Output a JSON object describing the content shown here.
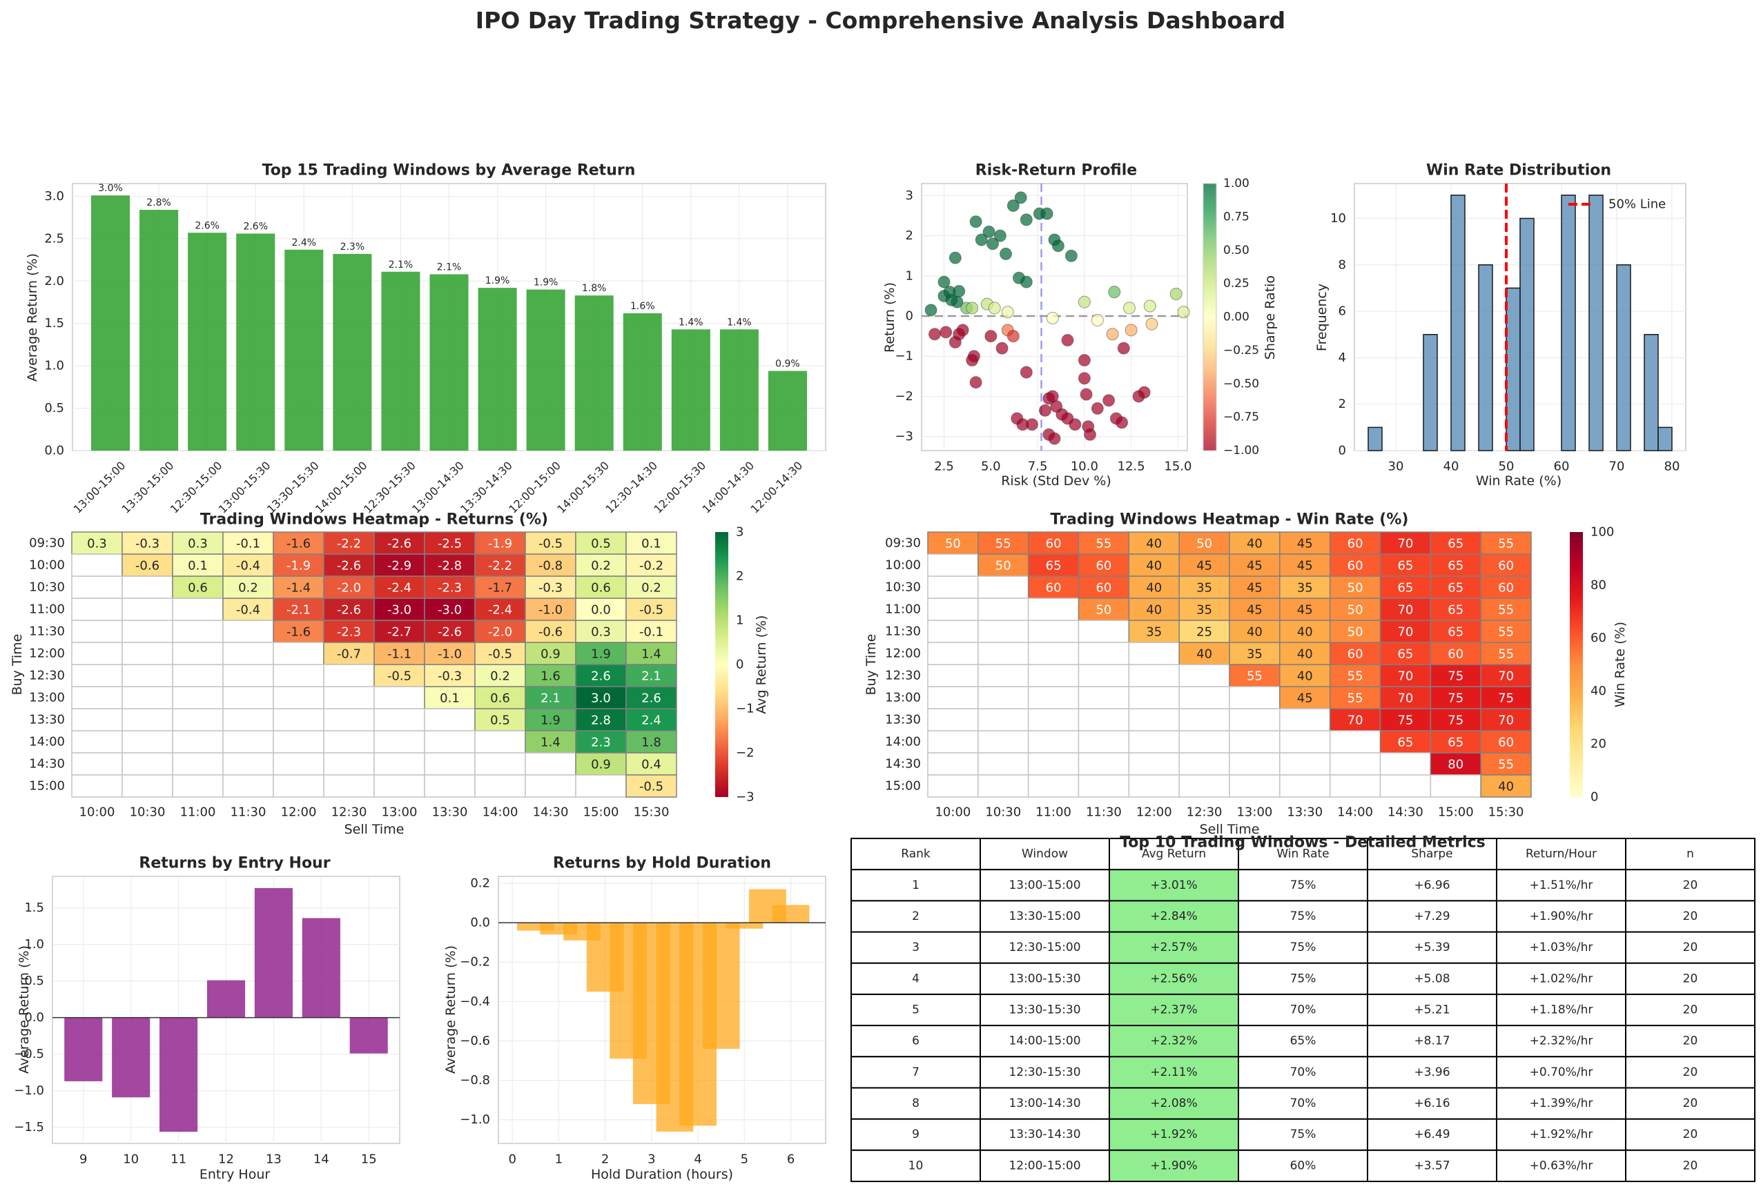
{
  "page": {
    "title": "IPO Day Trading Strategy - Comprehensive Analysis Dashboard"
  },
  "chart_data": [
    {
      "id": "top15",
      "type": "bar",
      "title": "Top 15 Trading Windows by Average Return",
      "xlabel": "",
      "ylabel": "Average Return (%)",
      "ylim": [
        0,
        3.15
      ],
      "yticks": [
        0.0,
        0.5,
        1.0,
        1.5,
        2.0,
        2.5,
        3.0
      ],
      "categories": [
        "13:00-15:00",
        "13:30-15:00",
        "12:30-15:00",
        "13:00-15:30",
        "13:30-15:30",
        "14:00-15:00",
        "12:30-15:30",
        "13:00-14:30",
        "13:30-14:30",
        "12:00-15:00",
        "14:00-15:30",
        "12:30-14:30",
        "12:00-15:30",
        "14:00-14:30",
        "12:00-14:30"
      ],
      "values": [
        3.01,
        2.84,
        2.57,
        2.56,
        2.37,
        2.32,
        2.11,
        2.08,
        1.92,
        1.9,
        1.83,
        1.62,
        1.43,
        1.43,
        0.94
      ],
      "data_labels": [
        "3.0%",
        "2.8%",
        "2.6%",
        "2.6%",
        "2.4%",
        "2.3%",
        "2.1%",
        "2.1%",
        "1.9%",
        "1.9%",
        "1.8%",
        "1.6%",
        "1.4%",
        "1.4%",
        "0.9%"
      ],
      "color": "#2ca02c"
    },
    {
      "id": "riskreturn",
      "type": "scatter",
      "title": "Risk-Return Profile",
      "xlabel": "Risk (Std Dev %)",
      "ylabel": "Return (%)",
      "xlim": [
        1.3,
        15.5
      ],
      "ylim": [
        -3.35,
        3.3
      ],
      "xticks": [
        2.5,
        5.0,
        7.5,
        10.0,
        12.5,
        15.0
      ],
      "yticks": [
        -3,
        -2,
        -1,
        0,
        1,
        2,
        3
      ],
      "vline": 7.7,
      "hline": 0,
      "colorbar": {
        "label": "Sharpe Ratio",
        "range": [
          -1,
          1
        ],
        "ticks": [
          "1.00",
          "0.75",
          "0.50",
          "0.25",
          "0.00",
          "-0.25",
          "-0.50",
          "-0.75",
          "-1.00"
        ]
      },
      "points": [
        [
          1.8,
          0.15,
          1
        ],
        [
          2.5,
          0.5,
          1
        ],
        [
          2.5,
          0.85,
          1
        ],
        [
          2.9,
          0.4,
          1
        ],
        [
          2.8,
          0.6,
          1
        ],
        [
          3.1,
          1.45,
          1
        ],
        [
          3.3,
          0.62,
          1
        ],
        [
          3.2,
          0.35,
          1
        ],
        [
          3.7,
          0.2,
          0.6
        ],
        [
          4.2,
          2.35,
          1
        ],
        [
          4.5,
          1.9,
          1
        ],
        [
          4.9,
          2.1,
          1
        ],
        [
          5.1,
          1.8,
          1
        ],
        [
          5.5,
          2.0,
          1
        ],
        [
          5.8,
          1.55,
          1
        ],
        [
          6.2,
          2.75,
          1
        ],
        [
          6.6,
          2.95,
          1
        ],
        [
          6.9,
          2.4,
          1
        ],
        [
          7.6,
          2.55,
          1
        ],
        [
          8.0,
          2.55,
          1
        ],
        [
          8.4,
          1.9,
          1
        ],
        [
          8.6,
          1.75,
          1
        ],
        [
          9.3,
          1.5,
          1
        ],
        [
          6.5,
          0.95,
          1
        ],
        [
          4.0,
          0.2,
          0.4
        ],
        [
          4.8,
          0.3,
          0.3
        ],
        [
          5.2,
          0.2,
          0.2
        ],
        [
          5.9,
          0.1,
          0.1
        ],
        [
          6.9,
          0.85,
          1
        ],
        [
          10.0,
          0.35,
          0.3
        ],
        [
          11.6,
          0.6,
          0.6
        ],
        [
          12.4,
          0.2,
          0.2
        ],
        [
          13.5,
          0.25,
          0.2
        ],
        [
          14.9,
          0.55,
          0.4
        ],
        [
          15.3,
          0.1,
          0.2
        ],
        [
          8.3,
          -0.05,
          0
        ],
        [
          10.7,
          -0.1,
          0
        ],
        [
          11.5,
          -0.45,
          -0.4
        ],
        [
          12.5,
          -0.35,
          -0.4
        ],
        [
          13.6,
          -0.2,
          -0.3
        ],
        [
          2.0,
          -0.45,
          -1
        ],
        [
          2.6,
          -0.4,
          -1
        ],
        [
          3.1,
          -0.65,
          -1
        ],
        [
          3.5,
          -0.35,
          -1
        ],
        [
          3.3,
          -0.45,
          -1
        ],
        [
          4.1,
          -1.0,
          -1
        ],
        [
          4.0,
          -1.1,
          -1
        ],
        [
          4.2,
          -1.65,
          -1
        ],
        [
          5.0,
          -0.5,
          -1
        ],
        [
          5.6,
          -0.8,
          -1
        ],
        [
          5.9,
          -0.35,
          -0.6
        ],
        [
          6.2,
          -0.5,
          -0.8
        ],
        [
          6.9,
          -1.4,
          -1
        ],
        [
          6.4,
          -2.55,
          -1
        ],
        [
          6.7,
          -2.7,
          -1
        ],
        [
          7.2,
          -2.7,
          -1
        ],
        [
          7.9,
          -2.35,
          -1
        ],
        [
          8.1,
          -2.05,
          -1
        ],
        [
          8.3,
          -2.0,
          -1
        ],
        [
          8.5,
          -2.25,
          -1
        ],
        [
          8.8,
          -2.45,
          -1
        ],
        [
          9.1,
          -2.55,
          -1
        ],
        [
          9.5,
          -2.7,
          -1
        ],
        [
          8.1,
          -2.95,
          -1
        ],
        [
          8.4,
          -3.05,
          -1
        ],
        [
          9.1,
          -0.6,
          -1
        ],
        [
          10.0,
          -1.1,
          -1
        ],
        [
          10.0,
          -1.55,
          -1
        ],
        [
          10.1,
          -1.95,
          -1
        ],
        [
          10.2,
          -2.75,
          -1
        ],
        [
          10.3,
          -2.95,
          -1
        ],
        [
          10.7,
          -2.3,
          -1
        ],
        [
          11.3,
          -2.1,
          -1
        ],
        [
          11.7,
          -2.55,
          -1
        ],
        [
          12.0,
          -2.65,
          -1
        ],
        [
          12.9,
          -2.0,
          -1
        ],
        [
          13.2,
          -1.9,
          -1
        ],
        [
          12.1,
          -0.8,
          -1
        ]
      ]
    },
    {
      "id": "winrate",
      "type": "bar",
      "title": "Win Rate Distribution",
      "xlabel": "Win Rate (%)",
      "ylabel": "Frequency",
      "xlim": [
        22.5,
        82.5
      ],
      "ylim": [
        0,
        11.5
      ],
      "xticks": [
        30,
        40,
        50,
        60,
        70,
        80
      ],
      "yticks": [
        0,
        2,
        4,
        6,
        8,
        10
      ],
      "bins": [
        [
          25,
          27.5,
          1
        ],
        [
          35,
          37.5,
          5
        ],
        [
          40,
          42.5,
          11
        ],
        [
          45,
          47.5,
          8
        ],
        [
          50,
          52.5,
          7
        ],
        [
          52.5,
          55,
          10
        ],
        [
          60,
          62.5,
          11
        ],
        [
          65,
          67.5,
          11
        ],
        [
          70,
          72.5,
          8
        ],
        [
          75,
          77.5,
          5
        ],
        [
          77.5,
          80,
          1
        ]
      ],
      "reference_line": 50,
      "legend": "50% Line",
      "color": "#5b8db8"
    },
    {
      "id": "heat_returns",
      "type": "heatmap",
      "title": "Trading Windows Heatmap - Returns (%)",
      "xlabel": "Sell Time",
      "ylabel": "Buy Time",
      "rows": [
        "09:30",
        "10:00",
        "10:30",
        "11:00",
        "11:30",
        "12:00",
        "12:30",
        "13:00",
        "13:30",
        "14:00",
        "14:30",
        "15:00"
      ],
      "cols": [
        "10:00",
        "10:30",
        "11:00",
        "11:30",
        "12:00",
        "12:30",
        "13:00",
        "13:30",
        "14:00",
        "14:30",
        "15:00",
        "15:30"
      ],
      "colorbar": {
        "label": "Avg Return (%)",
        "range": [
          -3,
          3
        ],
        "ticks": [
          "3",
          "2",
          "1",
          "0",
          "−1",
          "−2",
          "−3"
        ]
      },
      "values": [
        [
          0.3,
          -0.3,
          0.3,
          -0.1,
          -1.6,
          -2.2,
          -2.6,
          -2.5,
          -1.9,
          -0.5,
          0.5,
          0.1
        ],
        [
          null,
          -0.6,
          0.1,
          -0.4,
          -1.9,
          -2.6,
          -2.9,
          -2.8,
          -2.2,
          -0.8,
          0.2,
          -0.2
        ],
        [
          null,
          null,
          0.6,
          0.2,
          -1.4,
          -2.0,
          -2.4,
          -2.3,
          -1.7,
          -0.3,
          0.6,
          0.2
        ],
        [
          null,
          null,
          null,
          -0.4,
          -2.1,
          -2.6,
          -3.0,
          -3.0,
          -2.4,
          -1.0,
          -0.0,
          -0.5
        ],
        [
          null,
          null,
          null,
          null,
          -1.6,
          -2.3,
          -2.7,
          -2.6,
          -2.0,
          -0.6,
          0.3,
          -0.1
        ],
        [
          null,
          null,
          null,
          null,
          null,
          -0.7,
          -1.1,
          -1.0,
          -0.5,
          0.9,
          1.9,
          1.4
        ],
        [
          null,
          null,
          null,
          null,
          null,
          null,
          -0.5,
          -0.3,
          0.2,
          1.6,
          2.6,
          2.1
        ],
        [
          null,
          null,
          null,
          null,
          null,
          null,
          null,
          0.1,
          0.6,
          2.1,
          3.0,
          2.6
        ],
        [
          null,
          null,
          null,
          null,
          null,
          null,
          null,
          null,
          0.5,
          1.9,
          2.8,
          2.4
        ],
        [
          null,
          null,
          null,
          null,
          null,
          null,
          null,
          null,
          null,
          1.4,
          2.3,
          1.8
        ],
        [
          null,
          null,
          null,
          null,
          null,
          null,
          null,
          null,
          null,
          null,
          0.9,
          0.4
        ],
        [
          null,
          null,
          null,
          null,
          null,
          null,
          null,
          null,
          null,
          null,
          null,
          -0.5
        ]
      ]
    },
    {
      "id": "heat_winrate",
      "type": "heatmap",
      "title": "Trading Windows Heatmap - Win Rate (%)",
      "xlabel": "Sell Time",
      "ylabel": "Buy Time",
      "rows": [
        "09:30",
        "10:00",
        "10:30",
        "11:00",
        "11:30",
        "12:00",
        "12:30",
        "13:00",
        "13:30",
        "14:00",
        "14:30",
        "15:00"
      ],
      "cols": [
        "10:00",
        "10:30",
        "11:00",
        "11:30",
        "12:00",
        "12:30",
        "13:00",
        "13:30",
        "14:00",
        "14:30",
        "15:00",
        "15:30"
      ],
      "colorbar": {
        "label": "Win Rate (%)",
        "range": [
          0,
          100
        ],
        "ticks": [
          "100",
          "80",
          "60",
          "40",
          "20",
          "0"
        ]
      },
      "values": [
        [
          50,
          55,
          60,
          55,
          40,
          50,
          40,
          45,
          60,
          70,
          65,
          55
        ],
        [
          null,
          50,
          65,
          60,
          40,
          45,
          45,
          45,
          60,
          65,
          65,
          60
        ],
        [
          null,
          null,
          60,
          60,
          40,
          35,
          45,
          35,
          50,
          65,
          65,
          60
        ],
        [
          null,
          null,
          null,
          50,
          40,
          35,
          45,
          45,
          50,
          70,
          65,
          55
        ],
        [
          null,
          null,
          null,
          null,
          35,
          25,
          40,
          40,
          50,
          70,
          65,
          55
        ],
        [
          null,
          null,
          null,
          null,
          null,
          40,
          35,
          40,
          60,
          65,
          60,
          55
        ],
        [
          null,
          null,
          null,
          null,
          null,
          null,
          55,
          40,
          55,
          70,
          75,
          70
        ],
        [
          null,
          null,
          null,
          null,
          null,
          null,
          null,
          45,
          55,
          70,
          75,
          75
        ],
        [
          null,
          null,
          null,
          null,
          null,
          null,
          null,
          null,
          70,
          75,
          75,
          70
        ],
        [
          null,
          null,
          null,
          null,
          null,
          null,
          null,
          null,
          null,
          65,
          65,
          60
        ],
        [
          null,
          null,
          null,
          null,
          null,
          null,
          null,
          null,
          null,
          null,
          80,
          55
        ],
        [
          null,
          null,
          null,
          null,
          null,
          null,
          null,
          null,
          null,
          null,
          null,
          40
        ]
      ]
    },
    {
      "id": "entry_hour",
      "type": "bar",
      "title": "Returns by Entry Hour",
      "xlabel": "Entry Hour",
      "ylabel": "Average Return (%)",
      "xlim": [
        8.35,
        15.65
      ],
      "ylim": [
        -1.72,
        1.93
      ],
      "categories": [
        9,
        10,
        11,
        12,
        13,
        14,
        15
      ],
      "values": [
        -0.87,
        -1.09,
        -1.56,
        0.51,
        1.77,
        1.36,
        -0.49
      ],
      "yticks": [
        -1.5,
        -1.0,
        -0.5,
        0.0,
        0.5,
        1.0,
        1.5
      ],
      "color": "#93278f"
    },
    {
      "id": "hold_duration",
      "type": "bar",
      "title": "Returns by Hold Duration",
      "xlabel": "Hold Duration (hours)",
      "ylabel": "Average Return (%)",
      "xlim": [
        -0.3,
        6.75
      ],
      "ylim": [
        -1.12,
        0.235
      ],
      "x": [
        0.5,
        1.0,
        1.5,
        2.0,
        2.5,
        3.0,
        3.5,
        4.0,
        4.5,
        5.0,
        5.5,
        6.0
      ],
      "values": [
        -0.04,
        -0.06,
        -0.09,
        -0.35,
        -0.69,
        -0.92,
        -1.06,
        -1.03,
        -0.64,
        -0.03,
        0.17,
        0.09
      ],
      "xticks": [
        0,
        1,
        2,
        3,
        4,
        5,
        6
      ],
      "yticks": [
        -1.0,
        -0.8,
        -0.6,
        -0.4,
        -0.2,
        0.0,
        0.2
      ],
      "color": "#ffaa1e"
    },
    {
      "id": "top10_table",
      "type": "table",
      "title": "Top 10 Trading Windows - Detailed Metrics",
      "columns": [
        "Rank",
        "Window",
        "Avg Return",
        "Win Rate",
        "Sharpe",
        "Return/Hour",
        "n"
      ],
      "rows": [
        [
          "1",
          "13:00-15:00",
          "+3.01%",
          "75%",
          "+6.96",
          "+1.51%/hr",
          "20"
        ],
        [
          "2",
          "13:30-15:00",
          "+2.84%",
          "75%",
          "+7.29",
          "+1.90%/hr",
          "20"
        ],
        [
          "3",
          "12:30-15:00",
          "+2.57%",
          "75%",
          "+5.39",
          "+1.03%/hr",
          "20"
        ],
        [
          "4",
          "13:00-15:30",
          "+2.56%",
          "75%",
          "+5.08",
          "+1.02%/hr",
          "20"
        ],
        [
          "5",
          "13:30-15:30",
          "+2.37%",
          "70%",
          "+5.21",
          "+1.18%/hr",
          "20"
        ],
        [
          "6",
          "14:00-15:00",
          "+2.32%",
          "65%",
          "+8.17",
          "+2.32%/hr",
          "20"
        ],
        [
          "7",
          "12:30-15:30",
          "+2.11%",
          "70%",
          "+3.96",
          "+0.70%/hr",
          "20"
        ],
        [
          "8",
          "13:00-14:30",
          "+2.08%",
          "70%",
          "+6.16",
          "+1.39%/hr",
          "20"
        ],
        [
          "9",
          "13:30-14:30",
          "+1.92%",
          "75%",
          "+6.49",
          "+1.92%/hr",
          "20"
        ],
        [
          "10",
          "12:00-15:00",
          "+1.90%",
          "60%",
          "+3.57",
          "+0.63%/hr",
          "20"
        ]
      ],
      "highlight_column": 2,
      "highlight_color": "#90ee90"
    }
  ]
}
